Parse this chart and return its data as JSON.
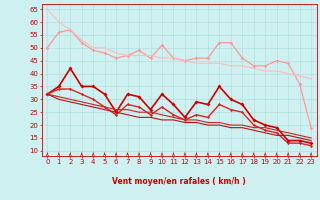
{
  "xlabel": "Vent moyen/en rafales ( km/h )",
  "xlim": [
    -0.5,
    23.5
  ],
  "ylim": [
    8,
    67
  ],
  "yticks": [
    10,
    15,
    20,
    25,
    30,
    35,
    40,
    45,
    50,
    55,
    60,
    65
  ],
  "xticks": [
    0,
    1,
    2,
    3,
    4,
    5,
    6,
    7,
    8,
    9,
    10,
    11,
    12,
    13,
    14,
    15,
    16,
    17,
    18,
    19,
    20,
    21,
    22,
    23
  ],
  "bg_color": "#cef0f0",
  "grid_color": "#aadddd",
  "lines": [
    {
      "x": [
        0,
        1,
        2,
        3,
        4,
        5,
        6,
        7,
        8,
        9,
        10,
        11,
        12,
        13,
        14,
        15,
        16,
        17,
        18,
        19,
        20,
        21,
        22,
        23
      ],
      "y": [
        50,
        56,
        57,
        52,
        49,
        48,
        46,
        47,
        49,
        46,
        51,
        46,
        45,
        46,
        46,
        52,
        52,
        46,
        43,
        43,
        45,
        44,
        36,
        19
      ],
      "color": "#ff9999",
      "lw": 0.9,
      "marker": "D",
      "ms": 1.8
    },
    {
      "x": [
        0,
        1,
        2,
        3,
        4,
        5,
        6,
        7,
        8,
        9,
        10,
        11,
        12,
        13,
        14,
        15,
        16,
        17,
        18,
        19,
        20,
        21,
        22,
        23
      ],
      "y": [
        65,
        60,
        57,
        53,
        50,
        50,
        48,
        47,
        47,
        47,
        46,
        46,
        45,
        44,
        44,
        44,
        43,
        43,
        42,
        41,
        41,
        40,
        39,
        38
      ],
      "color": "#ffbbbb",
      "lw": 0.8,
      "marker": null,
      "ms": 0
    },
    {
      "x": [
        0,
        1,
        2,
        3,
        4,
        5,
        6,
        7,
        8,
        9,
        10,
        11,
        12,
        13,
        14,
        15,
        16,
        17,
        18,
        19,
        20,
        21,
        22,
        23
      ],
      "y": [
        32,
        35,
        42,
        35,
        35,
        32,
        25,
        32,
        31,
        26,
        32,
        28,
        23,
        29,
        28,
        35,
        30,
        28,
        22,
        20,
        19,
        14,
        14,
        13
      ],
      "color": "#cc0000",
      "lw": 1.2,
      "marker": "D",
      "ms": 2.0
    },
    {
      "x": [
        0,
        1,
        2,
        3,
        4,
        5,
        6,
        7,
        8,
        9,
        10,
        11,
        12,
        13,
        14,
        15,
        16,
        17,
        18,
        19,
        20,
        21,
        22,
        23
      ],
      "y": [
        32,
        34,
        34,
        32,
        30,
        27,
        24,
        28,
        27,
        24,
        27,
        24,
        22,
        24,
        23,
        28,
        26,
        25,
        20,
        18,
        17,
        13,
        13,
        12
      ],
      "color": "#dd2222",
      "lw": 1.0,
      "marker": "D",
      "ms": 1.6
    },
    {
      "x": [
        0,
        1,
        2,
        3,
        4,
        5,
        6,
        7,
        8,
        9,
        10,
        11,
        12,
        13,
        14,
        15,
        16,
        17,
        18,
        19,
        20,
        21,
        22,
        23
      ],
      "y": [
        32,
        31,
        30,
        29,
        28,
        27,
        26,
        26,
        25,
        25,
        24,
        23,
        22,
        22,
        21,
        21,
        20,
        20,
        19,
        19,
        18,
        17,
        16,
        15
      ],
      "color": "#cc2222",
      "lw": 0.8,
      "marker": null,
      "ms": 0
    },
    {
      "x": [
        0,
        1,
        2,
        3,
        4,
        5,
        6,
        7,
        8,
        9,
        10,
        11,
        12,
        13,
        14,
        15,
        16,
        17,
        18,
        19,
        20,
        21,
        22,
        23
      ],
      "y": [
        32,
        30,
        29,
        28,
        27,
        26,
        25,
        24,
        23,
        23,
        22,
        22,
        21,
        21,
        20,
        20,
        19,
        19,
        18,
        17,
        16,
        16,
        15,
        14
      ],
      "color": "#bb1111",
      "lw": 0.8,
      "marker": null,
      "ms": 0
    }
  ],
  "arrow_color": "#cc0000",
  "axis_color": "#cc0000",
  "tick_color": "#cc0000",
  "label_color": "#cc0000",
  "tick_fontsize": 5.0,
  "xlabel_fontsize": 5.5
}
